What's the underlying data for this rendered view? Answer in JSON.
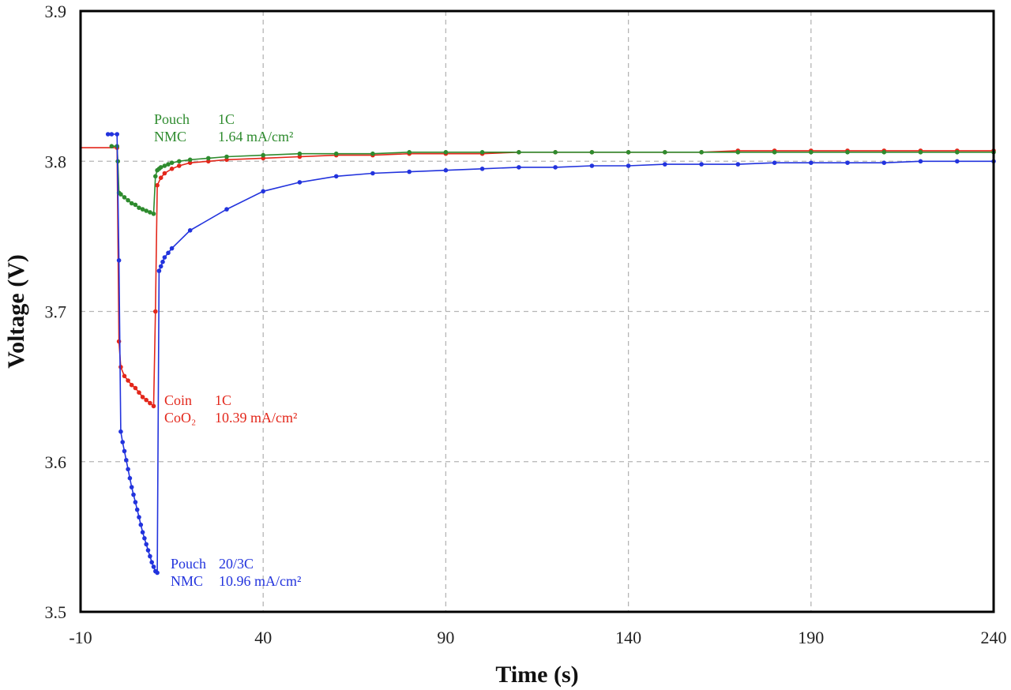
{
  "chart_data": {
    "type": "line",
    "title": "",
    "xlabel": "Time (s)",
    "ylabel": "Voltage (V)",
    "xlim": [
      -10,
      240
    ],
    "ylim": [
      3.5,
      3.9
    ],
    "xticks": [
      -10,
      40,
      90,
      140,
      190,
      240
    ],
    "yticks": [
      3.5,
      3.6,
      3.7,
      3.8,
      3.9
    ],
    "xtick_labels": [
      "-10",
      "40",
      "90",
      "140",
      "190",
      "240"
    ],
    "ytick_labels": [
      "3.5",
      "3.6",
      "3.7",
      "3.8",
      "3.9"
    ],
    "grid": true,
    "series": [
      {
        "key": "red",
        "color": "#e3271b",
        "x": [
          -10,
          0,
          0.5,
          1,
          2,
          3,
          4,
          5,
          6,
          7,
          8,
          9,
          10,
          10.5,
          11,
          12,
          13,
          15,
          17,
          20,
          25,
          30,
          40,
          50,
          60,
          70,
          80,
          90,
          100,
          110,
          120,
          130,
          140,
          150,
          160,
          170,
          180,
          190,
          200,
          210,
          220,
          230,
          240
        ],
        "y": [
          3.809,
          3.809,
          3.68,
          3.663,
          3.657,
          3.654,
          3.651,
          3.649,
          3.646,
          3.643,
          3.641,
          3.639,
          3.637,
          3.7,
          3.784,
          3.789,
          3.792,
          3.795,
          3.797,
          3.799,
          3.8,
          3.801,
          3.802,
          3.803,
          3.804,
          3.804,
          3.805,
          3.805,
          3.805,
          3.806,
          3.806,
          3.806,
          3.806,
          3.806,
          3.806,
          3.807,
          3.807,
          3.807,
          3.807,
          3.807,
          3.807,
          3.807,
          3.807
        ]
      },
      {
        "key": "green",
        "color": "#2e8b2e",
        "x": [
          -1.5,
          0,
          0.2,
          0.5,
          1,
          2,
          3,
          4,
          5,
          6,
          7,
          8,
          9,
          10,
          10.5,
          11,
          11.5,
          12,
          13,
          14,
          15,
          17,
          20,
          25,
          30,
          40,
          50,
          60,
          70,
          80,
          90,
          100,
          110,
          120,
          130,
          140,
          150,
          160,
          170,
          180,
          190,
          200,
          210,
          220,
          230,
          240
        ],
        "y": [
          3.81,
          3.81,
          3.8,
          3.779,
          3.778,
          3.776,
          3.774,
          3.772,
          3.771,
          3.769,
          3.768,
          3.767,
          3.766,
          3.765,
          3.79,
          3.794,
          3.795,
          3.796,
          3.797,
          3.798,
          3.799,
          3.8,
          3.801,
          3.802,
          3.803,
          3.804,
          3.805,
          3.805,
          3.805,
          3.806,
          3.806,
          3.806,
          3.806,
          3.806,
          3.806,
          3.806,
          3.806,
          3.806,
          3.806,
          3.806,
          3.806,
          3.806,
          3.806,
          3.806,
          3.806,
          3.806
        ]
      },
      {
        "key": "blue",
        "color": "#2233dd",
        "x": [
          -2.5,
          -1.5,
          0,
          0.5,
          1,
          1.5,
          2,
          2.5,
          3,
          3.5,
          4,
          4.5,
          5,
          5.5,
          6,
          6.5,
          7,
          7.5,
          8,
          8.5,
          9,
          9.5,
          10,
          10.5,
          11,
          11.5,
          12,
          12.5,
          13,
          14,
          15,
          20,
          30,
          40,
          50,
          60,
          70,
          80,
          90,
          100,
          110,
          120,
          130,
          140,
          150,
          160,
          170,
          180,
          190,
          200,
          210,
          220,
          230,
          240
        ],
        "y": [
          3.818,
          3.818,
          3.818,
          3.734,
          3.62,
          3.613,
          3.607,
          3.601,
          3.595,
          3.589,
          3.583,
          3.578,
          3.573,
          3.568,
          3.563,
          3.558,
          3.553,
          3.549,
          3.545,
          3.541,
          3.537,
          3.533,
          3.53,
          3.527,
          3.526,
          3.727,
          3.73,
          3.733,
          3.736,
          3.739,
          3.742,
          3.754,
          3.768,
          3.78,
          3.786,
          3.79,
          3.792,
          3.793,
          3.794,
          3.795,
          3.796,
          3.796,
          3.797,
          3.797,
          3.798,
          3.798,
          3.798,
          3.799,
          3.799,
          3.799,
          3.799,
          3.8,
          3.8,
          3.8
        ]
      }
    ],
    "annotations": [
      {
        "key": "green",
        "lines": [
          [
            "Pouch",
            "1C"
          ],
          [
            "NMC",
            "1.64 mA/cm²"
          ]
        ]
      },
      {
        "key": "red",
        "lines": [
          [
            "Coin",
            "1C"
          ],
          [
            "CoO₂",
            "10.39 mA/cm²"
          ]
        ]
      },
      {
        "key": "blue",
        "lines": [
          [
            "Pouch",
            "20/3C"
          ],
          [
            "NMC",
            "10.96 mA/cm²"
          ]
        ]
      }
    ]
  }
}
